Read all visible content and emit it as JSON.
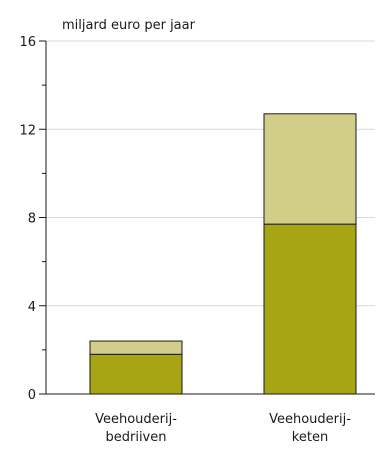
{
  "chart_data": {
    "type": "bar",
    "stacked": true,
    "ylabel": "miljard euro per jaar",
    "ylim": [
      0,
      16
    ],
    "yticks": [
      "0",
      "4",
      "8",
      "12",
      "16"
    ],
    "grid": true,
    "categories": [
      [
        "Veehouderij-",
        "bedriiven"
      ],
      [
        "Veehouderij-",
        "keten"
      ]
    ],
    "series": [
      {
        "values": [
          1.8,
          7.7
        ],
        "color": "#a8a515"
      },
      {
        "values": [
          0.6,
          5.0
        ],
        "color": "#d2cd88"
      }
    ]
  }
}
